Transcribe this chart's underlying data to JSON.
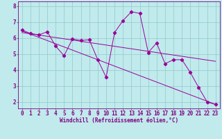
{
  "title": "",
  "xlabel": "Windchill (Refroidissement éolien,°C)",
  "ylabel": "",
  "bg_color": "#c0eaec",
  "line_color": "#990099",
  "grid_color": "#90c8cc",
  "xlim": [
    -0.5,
    23.5
  ],
  "ylim": [
    1.6,
    8.3
  ],
  "xticks": [
    0,
    1,
    2,
    3,
    4,
    5,
    6,
    7,
    8,
    9,
    10,
    11,
    12,
    13,
    14,
    15,
    16,
    17,
    18,
    19,
    20,
    21,
    22,
    23
  ],
  "yticks": [
    2,
    3,
    4,
    5,
    6,
    7,
    8
  ],
  "line1_x": [
    0,
    1,
    2,
    3,
    4,
    5,
    6,
    7,
    8,
    9,
    10,
    11,
    12,
    13,
    14,
    15,
    16,
    17,
    18,
    19,
    20,
    21,
    22,
    23
  ],
  "line1_y": [
    6.5,
    6.3,
    6.2,
    6.4,
    5.5,
    4.9,
    5.95,
    5.85,
    5.9,
    4.65,
    3.55,
    6.35,
    7.1,
    7.65,
    7.55,
    5.1,
    5.7,
    4.4,
    4.65,
    4.65,
    3.85,
    2.9,
    2.0,
    1.85
  ],
  "line2_x": [
    0,
    23
  ],
  "line2_y": [
    6.45,
    1.85
  ],
  "line3_x": [
    0,
    23
  ],
  "line3_y": [
    6.35,
    4.55
  ],
  "font_color": "#800080",
  "font_size": 5.5,
  "marker": "D",
  "marker_size": 2.2,
  "linewidth": 0.7
}
